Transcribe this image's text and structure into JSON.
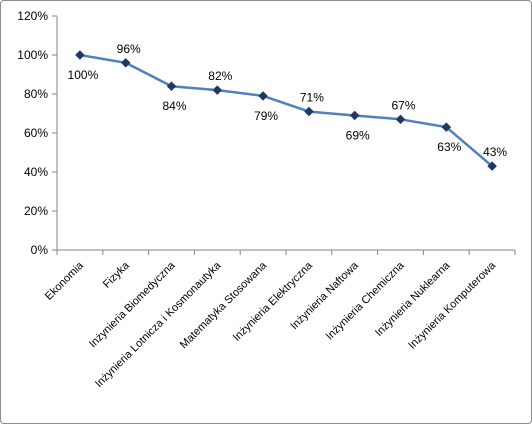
{
  "chart_data": {
    "type": "line",
    "title": "",
    "xlabel": "",
    "ylabel": "",
    "ylim": [
      0,
      120
    ],
    "yticks": [
      0,
      20,
      40,
      60,
      80,
      100,
      120
    ],
    "ytick_labels": [
      "0%",
      "20%",
      "40%",
      "60%",
      "80%",
      "100%",
      "120%"
    ],
    "grid": false,
    "legend": "none",
    "line_color": "#4f81bd",
    "marker_color": "#1f3864",
    "categories": [
      "Ekonomia",
      "Fizyka",
      "Inżynieria Biomedyczna",
      "Inżynieria Lotnicza i Kosmonautyka",
      "Matematyka Stosowana",
      "Inżynieria Elektryczna",
      "Inżynieria Naftowa",
      "Inżynieria Chemiczna",
      "Inżynieria Nuklearna",
      "Inżynieria Komputerowa"
    ],
    "values": [
      100,
      96,
      84,
      82,
      79,
      71,
      69,
      67,
      63,
      43
    ],
    "data_labels": [
      "100%",
      "96%",
      "84%",
      "82%",
      "79%",
      "71%",
      "69%",
      "67%",
      "63%",
      "43%"
    ],
    "label_positions": [
      "below",
      "above",
      "below",
      "above",
      "below",
      "above",
      "below",
      "above",
      "below",
      "above"
    ]
  }
}
